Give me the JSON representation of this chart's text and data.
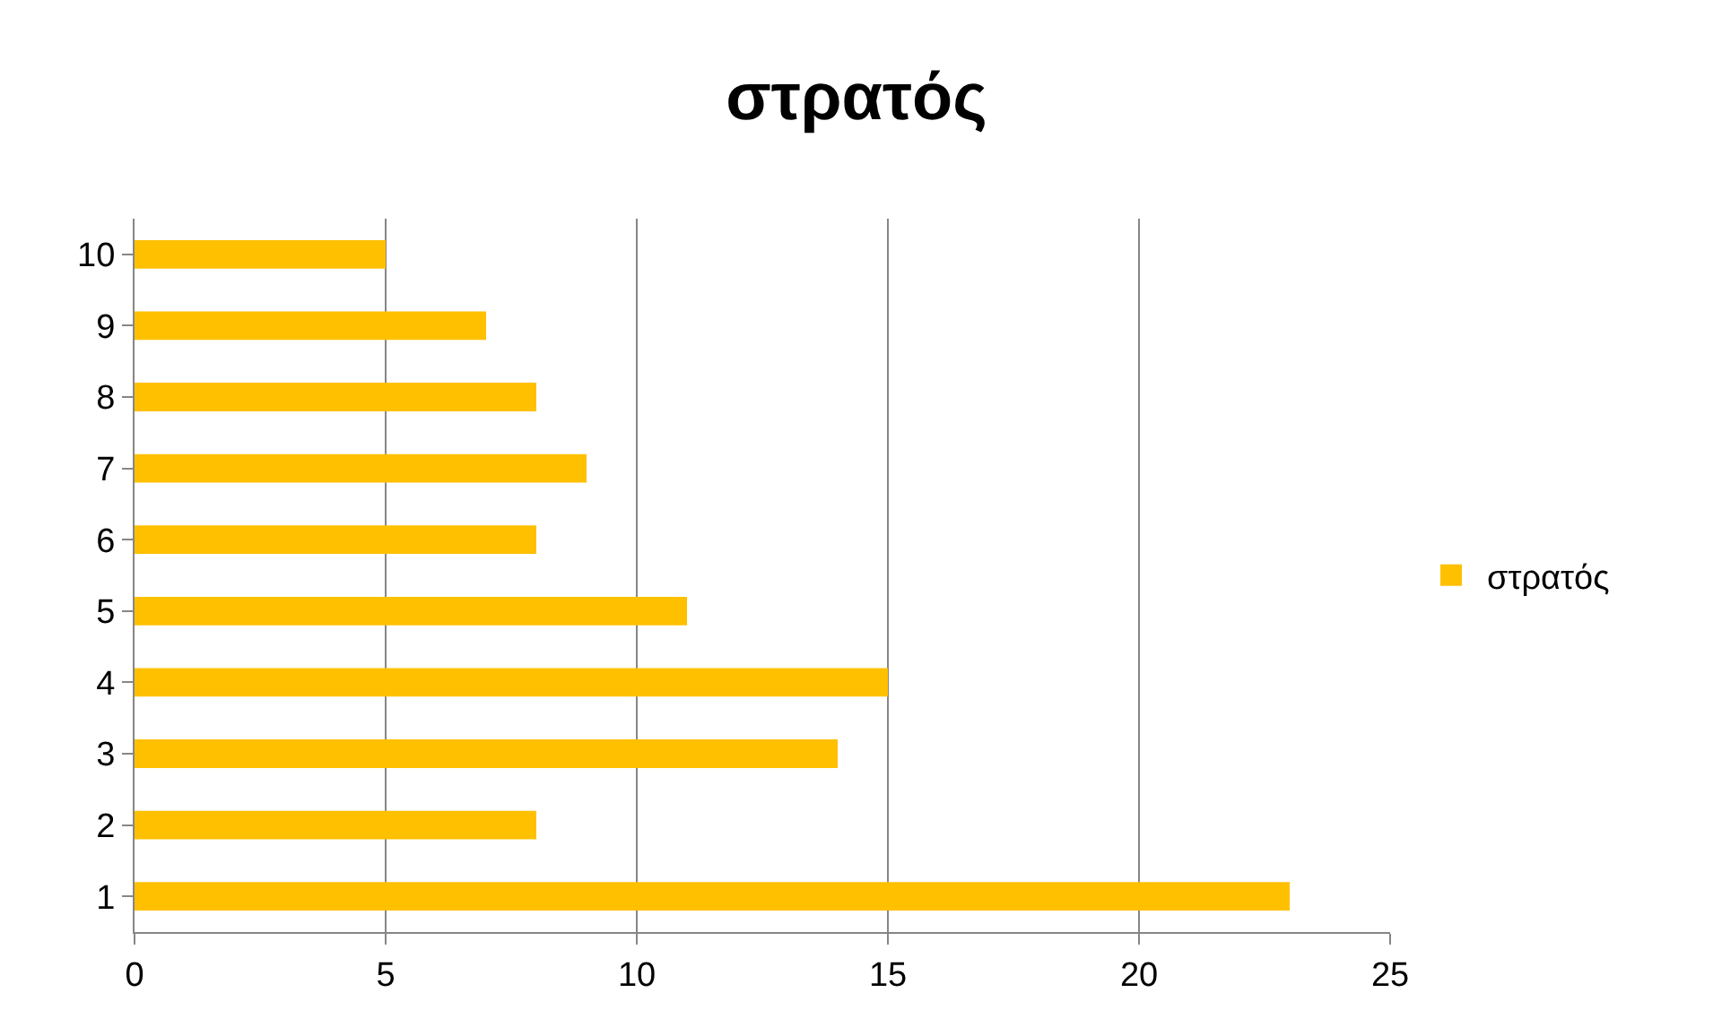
{
  "chart_data": {
    "type": "bar",
    "orientation": "horizontal",
    "title": "στρατός",
    "categories": [
      "10",
      "9",
      "8",
      "7",
      "6",
      "5",
      "4",
      "3",
      "2",
      "1"
    ],
    "series": [
      {
        "name": "στρατός",
        "color": "#ffc000",
        "values": [
          5,
          7,
          8,
          9,
          8,
          11,
          15,
          14,
          8,
          23
        ]
      }
    ],
    "xlim": [
      0,
      25
    ],
    "xticks": [
      0,
      5,
      10,
      15,
      20,
      25
    ],
    "grid": "x",
    "legend": "right"
  }
}
